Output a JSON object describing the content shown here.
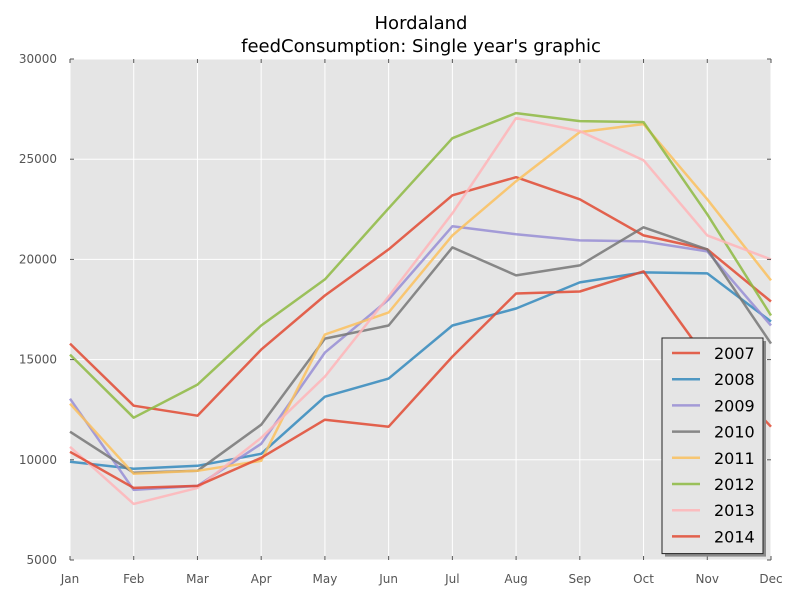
{
  "chart_data": {
    "type": "line",
    "title": "Hordaland",
    "subtitle": "feedConsumption: Single year's graphic",
    "xlabel": "",
    "ylabel": "",
    "categories": [
      "Jan",
      "Feb",
      "Mar",
      "Apr",
      "May",
      "Jun",
      "Jul",
      "Aug",
      "Sep",
      "Oct",
      "Nov",
      "Dec"
    ],
    "yticks": [
      5000,
      10000,
      15000,
      20000,
      25000,
      30000
    ],
    "ylim": [
      5000,
      30000
    ],
    "grid": true,
    "legend_position": "lower-right",
    "series": [
      {
        "name": "2007",
        "color": "#e24a33",
        "values": [
          15800,
          12700,
          12200,
          15500,
          18200,
          20500,
          23200,
          24100,
          23000,
          21200,
          20500,
          17900
        ]
      },
      {
        "name": "2008",
        "color": "#348abd",
        "values": [
          9900,
          9550,
          9700,
          10300,
          13150,
          14050,
          16700,
          17550,
          18850,
          19350,
          19300,
          16900
        ]
      },
      {
        "name": "2009",
        "color": "#988ed5",
        "values": [
          13050,
          8500,
          8700,
          10800,
          15350,
          18000,
          21650,
          21250,
          20950,
          20900,
          20400,
          16700
        ]
      },
      {
        "name": "2010",
        "color": "#777777",
        "values": [
          11400,
          9350,
          9450,
          11750,
          16050,
          16700,
          20600,
          19200,
          19700,
          21600,
          20500,
          15800
        ]
      },
      {
        "name": "2011",
        "color": "#fbc15e",
        "values": [
          12800,
          9300,
          9450,
          9950,
          16250,
          17350,
          21200,
          23900,
          26350,
          26750,
          23000,
          18950
        ]
      },
      {
        "name": "2012",
        "color": "#8eba42",
        "values": [
          15250,
          12100,
          13750,
          16700,
          19000,
          22550,
          26050,
          27300,
          26900,
          26850,
          22250,
          17200
        ]
      },
      {
        "name": "2013",
        "color": "#ffb5b8",
        "values": [
          10650,
          7800,
          8600,
          11100,
          14150,
          18150,
          22300,
          27050,
          26400,
          24950,
          21200,
          20000
        ]
      },
      {
        "name": "2014",
        "color": "#e24a33",
        "values": [
          10400,
          8600,
          8700,
          10100,
          12000,
          11650,
          15150,
          18300,
          18400,
          19400,
          15000,
          11650
        ]
      }
    ]
  }
}
